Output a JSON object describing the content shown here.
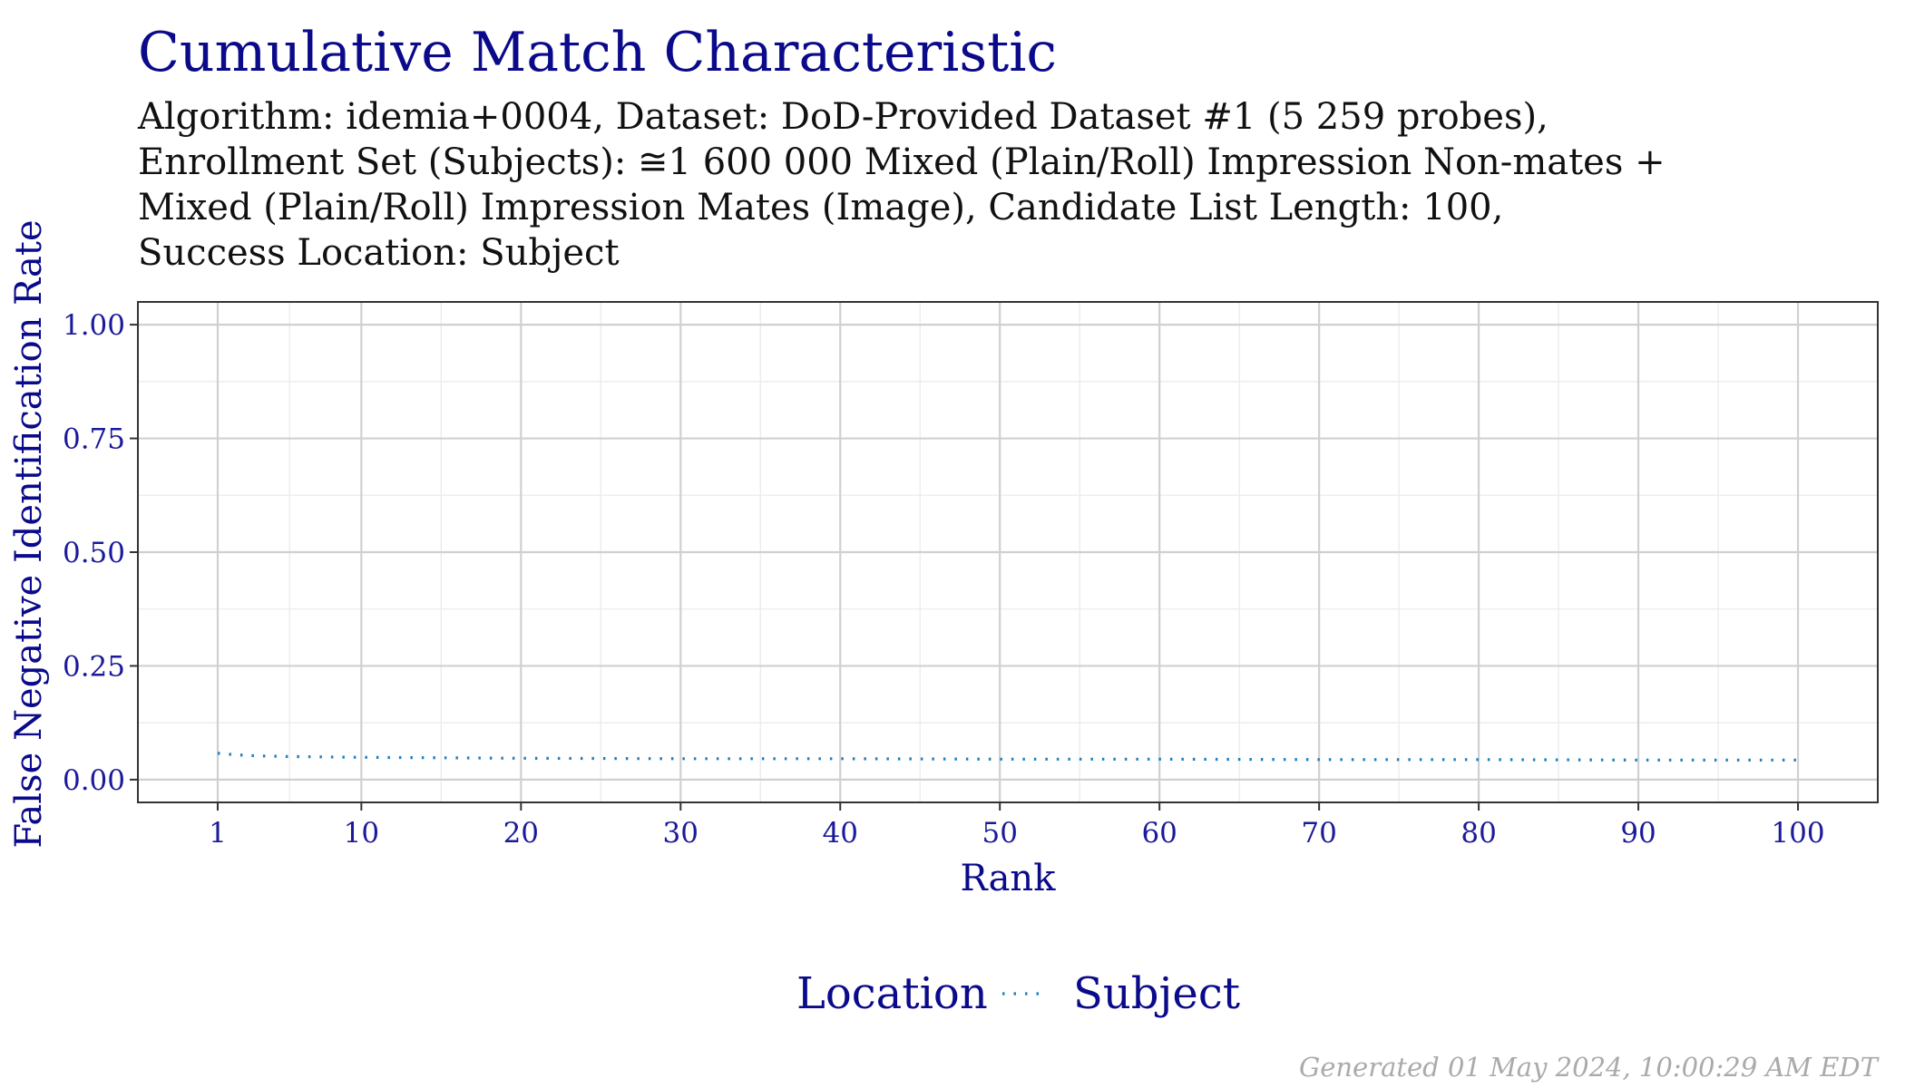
{
  "chart_data": {
    "type": "line",
    "title": "Cumulative Match Characteristic",
    "subtitle_lines": [
      "Algorithm: idemia+0004, Dataset: DoD-Provided Dataset #1 (5 259 probes),",
      "Enrollment Set (Subjects): ≅1 600 000 Mixed (Plain/Roll) Impression Non-mates +",
      "Mixed (Plain/Roll) Impression Mates (Image), Candidate List Length: 100,",
      "Success Location: Subject"
    ],
    "xlabel": "Rank",
    "ylabel": "False Negative Identification Rate",
    "xlim": [
      -4,
      105
    ],
    "ylim": [
      -0.05,
      1.05
    ],
    "x_ticks": [
      1,
      10,
      20,
      30,
      40,
      50,
      60,
      70,
      80,
      90,
      100
    ],
    "x_tick_labels": [
      "1",
      "10",
      "20",
      "30",
      "40",
      "50",
      "60",
      "70",
      "80",
      "90",
      "100"
    ],
    "y_ticks": [
      0,
      0.25,
      0.5,
      0.75,
      1.0
    ],
    "y_tick_labels": [
      "0.00",
      "0.25",
      "0.50",
      "0.75",
      "1.00"
    ],
    "grid": true,
    "legend": {
      "title": "Location",
      "placement": "bottom",
      "entries": [
        {
          "label": "Subject",
          "line_style": "dotted",
          "color": "#1f7fbf"
        }
      ]
    },
    "series": [
      {
        "name": "Subject",
        "color": "#1f7fbf",
        "line_style": "dotted",
        "x": [
          1,
          2,
          3,
          5,
          10,
          20,
          30,
          40,
          50,
          60,
          70,
          80,
          90,
          100
        ],
        "y": [
          0.058,
          0.055,
          0.053,
          0.051,
          0.049,
          0.047,
          0.046,
          0.046,
          0.045,
          0.045,
          0.044,
          0.044,
          0.043,
          0.043
        ]
      }
    ]
  },
  "footer": "Generated 01 May 2024, 10:00:29 AM EDT"
}
